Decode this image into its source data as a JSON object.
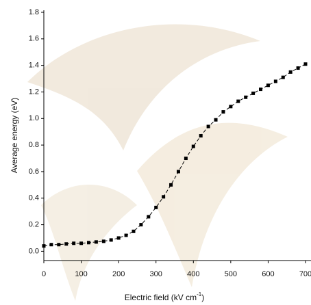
{
  "chart_data": {
    "type": "scatter",
    "x_label": "Electric field (kV cm",
    "x_label_sup": "-1",
    "x_label_end": ")",
    "y_label": "Average energy (eV)",
    "x": [
      0,
      20,
      40,
      60,
      80,
      100,
      120,
      140,
      160,
      180,
      200,
      220,
      240,
      260,
      280,
      300,
      320,
      340,
      360,
      380,
      400,
      420,
      440,
      460,
      480,
      500,
      520,
      540,
      560,
      580,
      600,
      620,
      640,
      660,
      680,
      700
    ],
    "series": [
      {
        "color": "#000000",
        "values": [
          0.04,
          0.05,
          0.05,
          0.055,
          0.06,
          0.06,
          0.065,
          0.07,
          0.075,
          0.085,
          0.1,
          0.12,
          0.15,
          0.2,
          0.26,
          0.33,
          0.41,
          0.5,
          0.6,
          0.7,
          0.79,
          0.87,
          0.94,
          0.99,
          1.05,
          1.09,
          1.13,
          1.16,
          1.19,
          1.22,
          1.25,
          1.28,
          1.31,
          1.35,
          1.38,
          1.41
        ]
      }
    ],
    "xlim": [
      0,
      700
    ],
    "xticks": [
      0,
      100,
      200,
      300,
      400,
      500,
      600,
      700
    ],
    "ylim": [
      -0.07,
      1.8
    ],
    "yticks": [
      {
        "value": 0,
        "label": "0.0"
      },
      0.2,
      0.4,
      0.6,
      0.8,
      {
        "value": 1,
        "label": "1.0"
      },
      1.2,
      1.4,
      1.6,
      1.8
    ],
    "line_style": "dashed"
  }
}
